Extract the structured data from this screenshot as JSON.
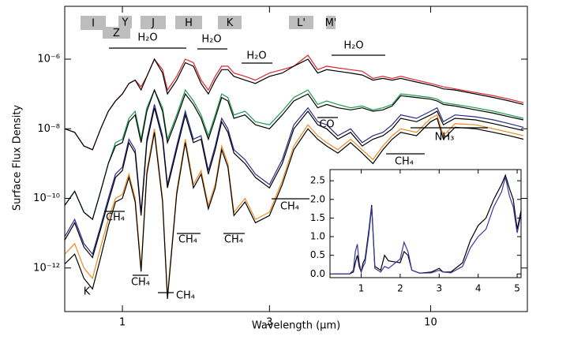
{
  "chart_data": [
    {
      "type": "line",
      "xlabel": "Wavelength (μm)",
      "ylabel": "Surface Flux Density",
      "xscale": "log",
      "yscale": "log",
      "xlim": [
        0.65,
        20.6
      ],
      "ylim": [
        5.6e-14,
        3.3e-05
      ],
      "xticks": [
        1,
        3,
        10
      ],
      "yticks": [
        {
          "value": 1e-06,
          "label": "10⁻⁶"
        },
        {
          "value": 1e-08,
          "label": "10⁻⁸"
        },
        {
          "value": 1e-10,
          "label": "10⁻¹⁰"
        },
        {
          "value": 1e-12,
          "label": "10⁻¹²"
        }
      ],
      "bands": [
        "I",
        "Z",
        "Y",
        "J",
        "H",
        "K",
        "L'",
        "M'"
      ],
      "annotations": [
        "H₂O",
        "H₂O",
        "H₂O",
        "H₂O",
        "CO",
        "NH₃",
        "CH₄",
        "CH₄",
        "CH₄",
        "CH₄",
        "CH₄",
        "CH₄",
        "CH₄",
        "K"
      ],
      "x": [
        0.65,
        0.7,
        0.75,
        0.8,
        0.85,
        0.9,
        0.95,
        1.0,
        1.05,
        1.1,
        1.15,
        1.2,
        1.27,
        1.35,
        1.4,
        1.5,
        1.6,
        1.7,
        1.8,
        1.9,
        2.0,
        2.1,
        2.2,
        2.3,
        2.5,
        2.7,
        3.0,
        3.3,
        3.6,
        4.0,
        4.3,
        4.6,
        5,
        5.5,
        6,
        6.5,
        7,
        7.5,
        8,
        9,
        10,
        10.5,
        11,
        12,
        14,
        16,
        18,
        20
      ],
      "series": [
        {
          "color": "#e3232b",
          "values": [
            1e-08,
            7.9e-09,
            3.2e-09,
            2.5e-09,
            1e-08,
            3.2e-08,
            6.3e-08,
            1e-07,
            2e-07,
            2.5e-07,
            1.6e-07,
            3.2e-07,
            1e-06,
            5e-07,
            1.3e-07,
            3.2e-07,
            1e-06,
            7.9e-07,
            2.5e-07,
            1.3e-07,
            3.2e-07,
            6.3e-07,
            6.3e-07,
            4e-07,
            3.2e-07,
            2.5e-07,
            4e-07,
            5e-07,
            6.3e-07,
            1.3e-06,
            5e-07,
            6.3e-07,
            5.6e-07,
            5e-07,
            4.5e-07,
            2.8e-07,
            3.2e-07,
            2.8e-07,
            3.2e-07,
            2.5e-07,
            2e-07,
            1.8e-07,
            1.6e-07,
            1.4e-07,
            1.1e-07,
            8.9e-08,
            7.1e-08,
            5.6e-08
          ]
        },
        {
          "color": "#000000",
          "values": [
            1e-08,
            7.9e-09,
            3.2e-09,
            2.5e-09,
            1e-08,
            3.2e-08,
            6.3e-08,
            1e-07,
            2e-07,
            2.5e-07,
            1.3e-07,
            3.2e-07,
            1e-06,
            4e-07,
            1e-07,
            2.5e-07,
            7.9e-07,
            6.3e-07,
            2e-07,
            1e-07,
            2.5e-07,
            5e-07,
            5e-07,
            3.2e-07,
            2.5e-07,
            2e-07,
            3.2e-07,
            4e-07,
            6.3e-07,
            1e-06,
            4e-07,
            5e-07,
            4.5e-07,
            4e-07,
            3.5e-07,
            2.5e-07,
            2.8e-07,
            2.5e-07,
            2.8e-07,
            2.2e-07,
            1.8e-07,
            1.6e-07,
            1.4e-07,
            1.3e-07,
            1e-07,
            7.9e-08,
            6.3e-08,
            5e-08
          ]
        },
        {
          "color": "#1a9a4e",
          "values": [
            6.3e-11,
            1.6e-10,
            4e-11,
            2.5e-11,
            1.6e-10,
            1e-09,
            4e-09,
            5e-09,
            2e-08,
            3.2e-08,
            5e-09,
            4e-08,
            1.3e-07,
            4e-08,
            5e-09,
            2.5e-08,
            1.3e-07,
            6.3e-08,
            2.5e-08,
            6.3e-09,
            2.5e-08,
            1e-07,
            7.9e-08,
            2.5e-08,
            3.2e-08,
            1.6e-08,
            1.3e-08,
            3.2e-08,
            7.9e-08,
            1.3e-07,
            5e-08,
            6.3e-08,
            5e-08,
            4e-08,
            4.5e-08,
            3.5e-08,
            4e-08,
            5e-08,
            1e-07,
            8.9e-08,
            7.9e-08,
            7.1e-08,
            5.6e-08,
            5e-08,
            4e-08,
            3.2e-08,
            2.5e-08,
            2e-08
          ]
        },
        {
          "color": "#000000",
          "values": [
            6.3e-11,
            1.6e-10,
            4e-11,
            2.5e-11,
            1.6e-10,
            1e-09,
            3.2e-09,
            4e-09,
            1.6e-08,
            2.5e-08,
            4e-09,
            3.2e-08,
            1.3e-07,
            3.2e-08,
            4e-09,
            2e-08,
            1e-07,
            5e-08,
            2e-08,
            5e-09,
            2e-08,
            7.9e-08,
            6.3e-08,
            2e-08,
            2.5e-08,
            1.3e-08,
            1e-08,
            2.5e-08,
            6.3e-08,
            1e-07,
            4e-08,
            5e-08,
            4e-08,
            3.5e-08,
            4e-08,
            3.2e-08,
            3.5e-08,
            4.5e-08,
            8.9e-08,
            7.9e-08,
            7.1e-08,
            6.3e-08,
            5e-08,
            4.5e-08,
            3.5e-08,
            2.8e-08,
            2.2e-08,
            1.8e-08
          ]
        },
        {
          "color": "#2b2b8a",
          "values": [
            7.9e-12,
            2.5e-11,
            5e-12,
            2.5e-12,
            1.6e-11,
            1e-10,
            5e-10,
            7.9e-10,
            5e-09,
            2.5e-09,
            4e-11,
            5e-09,
            5e-08,
            6.3e-09,
            2.5e-10,
            3.2e-09,
            3.2e-08,
            5e-09,
            6.3e-09,
            6.3e-10,
            3.2e-09,
            2e-08,
            1e-08,
            2.5e-09,
            1.3e-09,
            5e-10,
            2.5e-10,
            1.3e-09,
            1.3e-08,
            4e-08,
            1.6e-08,
            1.3e-08,
            6.3e-09,
            1e-08,
            4e-09,
            6.3e-09,
            7.9e-09,
            1.3e-08,
            2.5e-08,
            2e-08,
            3.2e-08,
            4e-08,
            1.6e-08,
            2.5e-08,
            2.2e-08,
            1.8e-08,
            1.4e-08,
            1.1e-08
          ]
        },
        {
          "color": "#000000",
          "values": [
            6.3e-12,
            2e-11,
            4e-12,
            2e-12,
            1.3e-11,
            7.9e-11,
            4e-10,
            6.3e-10,
            4e-09,
            2e-09,
            3.2e-11,
            4e-09,
            4e-08,
            5e-09,
            2e-10,
            2.5e-09,
            2.5e-08,
            4e-09,
            5e-09,
            5e-10,
            2.5e-09,
            1.6e-08,
            7.9e-09,
            2e-09,
            1e-09,
            4e-10,
            2e-10,
            1e-09,
            1e-08,
            3.2e-08,
            1.3e-08,
            1e-08,
            5e-09,
            7.9e-09,
            3.2e-09,
            5e-09,
            6.3e-09,
            1e-08,
            2e-08,
            1.6e-08,
            2.5e-08,
            3.2e-08,
            1.3e-08,
            2e-08,
            1.8e-08,
            1.4e-08,
            1.1e-08,
            8.9e-09
          ]
        },
        {
          "color": "#f08a1a",
          "values": [
            2.5e-12,
            5e-12,
            1e-12,
            5e-13,
            4e-12,
            2.5e-11,
            1e-10,
            1.3e-10,
            5e-10,
            1e-10,
            1e-12,
            6.3e-10,
            1e-08,
            1e-10,
            1.6e-13,
            1.6e-10,
            5e-09,
            2.5e-10,
            6.3e-10,
            6.3e-11,
            2.5e-10,
            3.2e-09,
            1e-09,
            4e-11,
            1e-10,
            2.5e-11,
            4e-11,
            3.2e-10,
            3.2e-09,
            1.3e-08,
            6.3e-09,
            4e-09,
            2.5e-09,
            5e-09,
            2.5e-09,
            1.3e-09,
            3.2e-09,
            6.3e-09,
            1e-08,
            7.9e-09,
            2e-08,
            2.5e-08,
            6.3e-09,
            1.4e-08,
            1.3e-08,
            1e-08,
            7.9e-09,
            6.3e-09
          ]
        },
        {
          "color": "#000000",
          "values": [
            1.3e-12,
            2.5e-12,
            5e-13,
            2.5e-13,
            2e-12,
            1.6e-11,
            7.9e-11,
            1e-10,
            4e-10,
            7.9e-11,
            7.9e-13,
            5e-10,
            7.9e-09,
            7.9e-11,
            1.3e-13,
            1.3e-10,
            4e-09,
            2e-10,
            5e-10,
            5e-11,
            2e-10,
            2.5e-09,
            7.9e-10,
            3.2e-11,
            7.9e-11,
            2e-11,
            3.2e-11,
            2.5e-10,
            2.5e-09,
            1e-08,
            5e-09,
            3.2e-09,
            2e-09,
            4e-09,
            2e-09,
            1e-09,
            2.5e-09,
            5e-09,
            7.9e-09,
            6.3e-09,
            1.6e-08,
            2e-08,
            5e-09,
            1.1e-08,
            1e-08,
            7.9e-09,
            6.3e-09,
            5e-09
          ]
        }
      ]
    },
    {
      "type": "line",
      "xlim": [
        0.2,
        5.1
      ],
      "ylim": [
        -0.1,
        2.8
      ],
      "xticks": [
        1,
        2,
        3,
        4,
        5
      ],
      "yticks": [
        {
          "value": 0,
          "label": "0.0"
        },
        0.5,
        {
          "value": 1,
          "label": "1.0"
        },
        1.5,
        {
          "value": 2,
          "label": "2.0"
        },
        2.5
      ],
      "x": [
        0.3,
        0.5,
        0.7,
        0.8,
        0.85,
        0.9,
        0.95,
        1.0,
        1.05,
        1.1,
        1.2,
        1.27,
        1.35,
        1.5,
        1.6,
        1.7,
        2.0,
        2.1,
        2.2,
        2.3,
        2.5,
        2.8,
        3.0,
        3.1,
        3.3,
        3.6,
        3.8,
        4.0,
        4.2,
        4.4,
        4.6,
        4.7,
        4.8,
        4.9,
        5.0,
        5.1
      ],
      "series": [
        {
          "color": "#000000",
          "values": [
            0,
            0,
            0,
            0.05,
            0.3,
            0.5,
            0.2,
            0.05,
            0.3,
            0.4,
            1.2,
            1.85,
            0.2,
            0.1,
            0.5,
            0.35,
            0.3,
            0.6,
            0.5,
            0.1,
            0.02,
            0.05,
            0.15,
            0.05,
            0.05,
            0.3,
            0.9,
            1.3,
            1.5,
            2.0,
            2.4,
            2.65,
            2.3,
            2.0,
            1.2,
            1.7
          ]
        },
        {
          "color": "#3636a0",
          "values": [
            0,
            0,
            0,
            0.1,
            0.6,
            0.8,
            0.3,
            0.05,
            0.2,
            0.3,
            1.1,
            1.8,
            0.15,
            0.05,
            0.2,
            0.15,
            0.4,
            0.85,
            0.6,
            0.1,
            0.02,
            0.03,
            0.1,
            0.05,
            0.03,
            0.2,
            0.7,
            1.0,
            1.2,
            1.8,
            2.2,
            2.6,
            2.1,
            1.8,
            1.1,
            1.6
          ]
        }
      ]
    }
  ]
}
